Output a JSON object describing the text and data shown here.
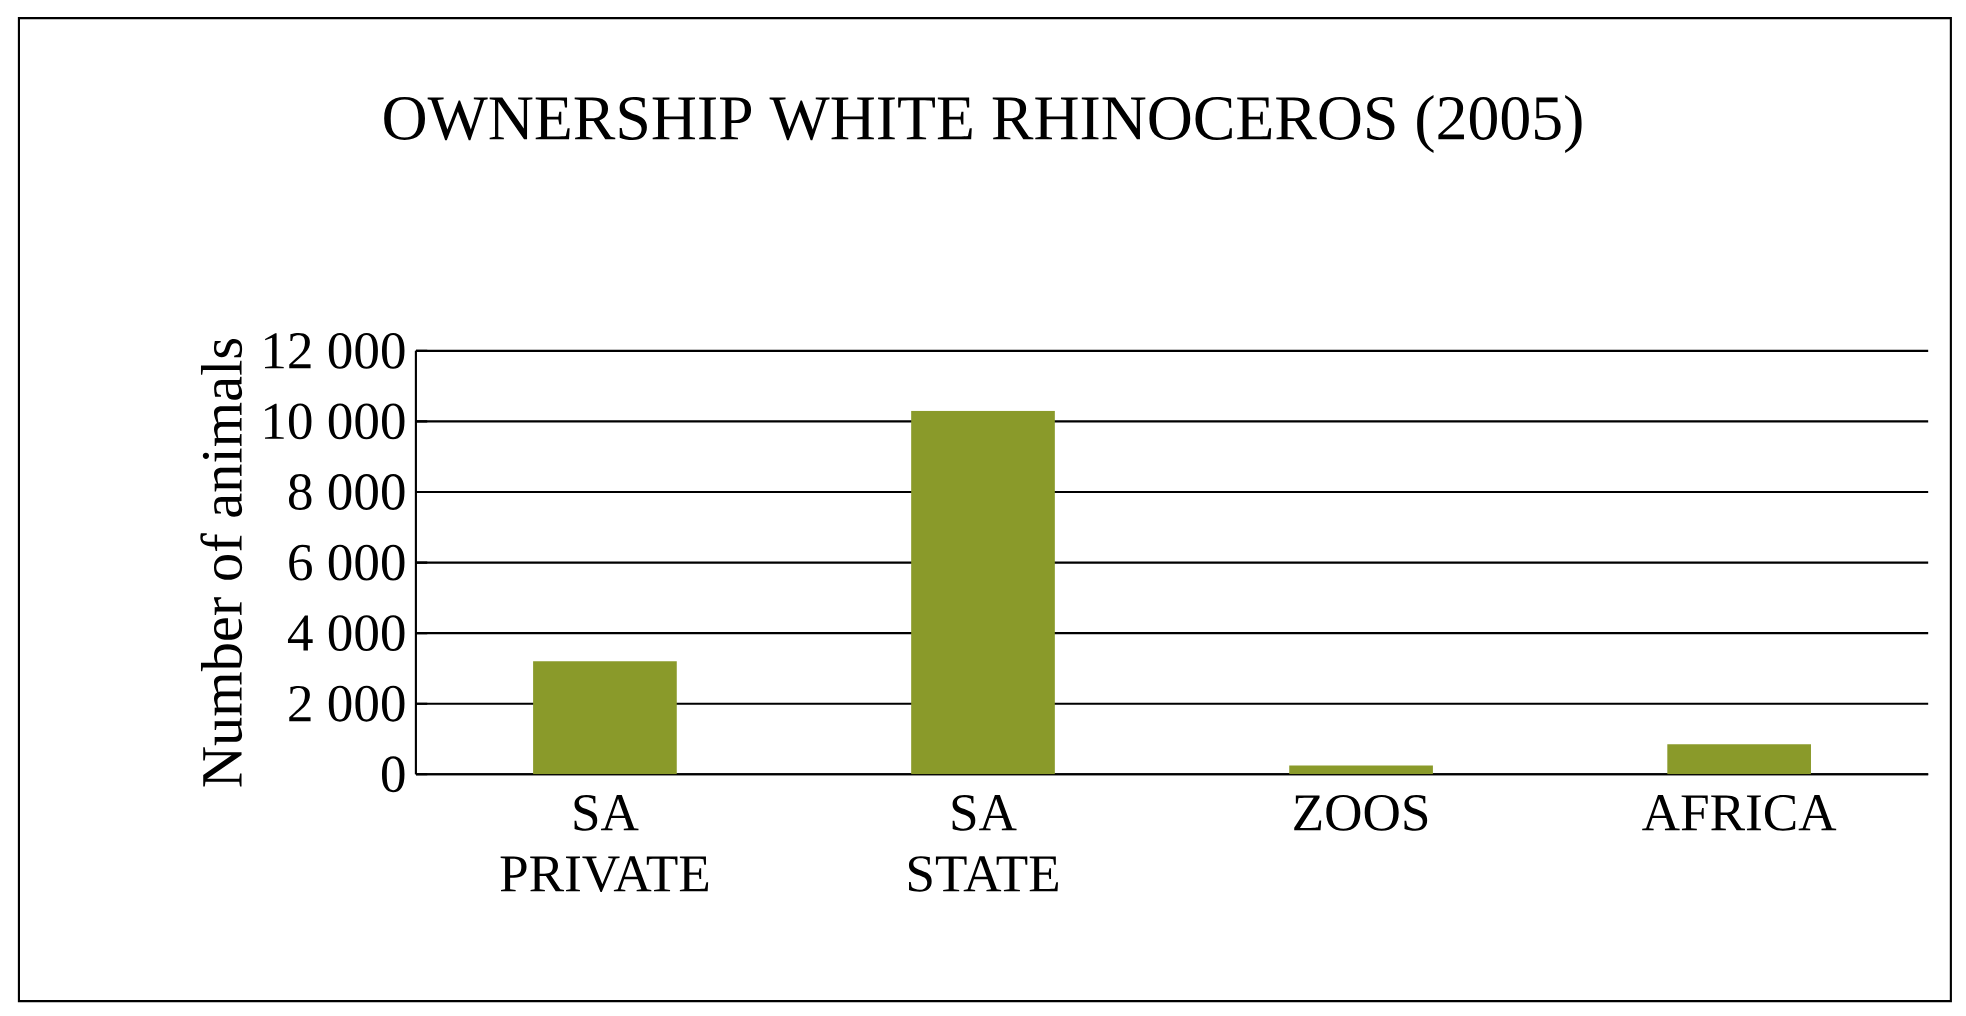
{
  "chart_data": {
    "type": "bar",
    "title": "OWNERSHIP WHITE RHINOCEROS (2005)",
    "ylabel": "Number of animals",
    "categories": [
      "SA PRIVATE",
      "SA STATE",
      "ZOOS",
      "AFRICA"
    ],
    "values": [
      3200,
      10300,
      250,
      850
    ],
    "color": "#8a9a2a",
    "ylim": [
      0,
      12000
    ],
    "yticks": [
      0,
      {
        "value": 2000,
        "label": "2 000"
      },
      {
        "value": 4000,
        "label": "4 000"
      },
      {
        "value": 6000,
        "label": "6 000"
      },
      {
        "value": 8000,
        "label": "8 000"
      },
      {
        "value": 10000,
        "label": "10 000"
      },
      {
        "value": 12000,
        "label": "12 000"
      }
    ],
    "grid": "y"
  }
}
